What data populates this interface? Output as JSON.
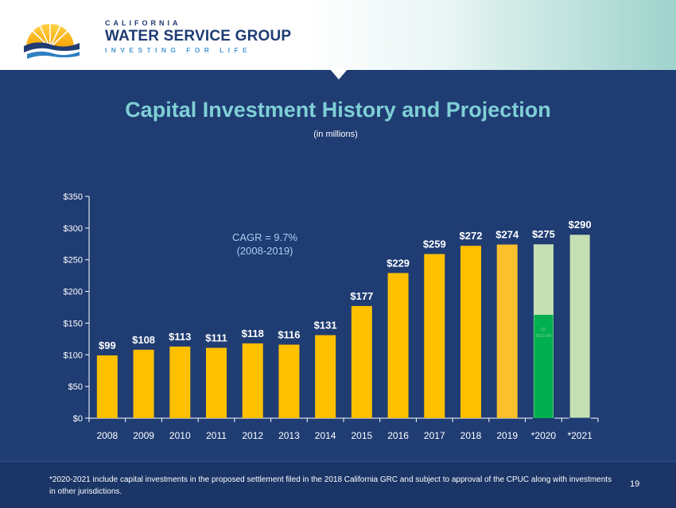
{
  "logo": {
    "top": "CALIFORNIA",
    "main": "WATER SERVICE GROUP",
    "sub": "INVESTING FOR LIFE"
  },
  "slide": {
    "title": "Capital Investment History and Projection",
    "subtitle": "(in millions)",
    "footnote": "*2020-2021 include capital investments in the proposed settlement filed in the 2018 California GRC and subject to approval of the CPUC along with investments in other jurisdictions.",
    "page_number": "19"
  },
  "chart_data": {
    "type": "bar",
    "categories": [
      "2008",
      "2009",
      "2010",
      "2011",
      "2012",
      "2013",
      "2014",
      "2015",
      "2016",
      "2017",
      "2018",
      "2019",
      "*2020",
      "*2021"
    ],
    "values": [
      99,
      108,
      113,
      111,
      118,
      116,
      131,
      177,
      229,
      259,
      272,
      274,
      275,
      290
    ],
    "value_labels": [
      "$99",
      "$108",
      "$113",
      "$111",
      "$118",
      "$116",
      "$131",
      "$177",
      "$229",
      "$259",
      "$272",
      "$274",
      "$275",
      "$290"
    ],
    "ylim": [
      0,
      350
    ],
    "yticks": [
      0,
      50,
      100,
      150,
      200,
      250,
      300,
      350
    ],
    "ytick_labels": [
      "$0",
      "$50",
      "$100",
      "$150",
      "$200",
      "$250",
      "$300",
      "$350"
    ],
    "bar_colors": [
      "#ffc000",
      "#ffc000",
      "#ffc000",
      "#ffc000",
      "#ffc000",
      "#ffc000",
      "#ffc000",
      "#ffc000",
      "#ffc000",
      "#ffc000",
      "#ffc000",
      "#fbc02d",
      "#c5e0b4",
      "#c5e0b4"
    ],
    "segment_2020": {
      "value": 163,
      "color": "#00b050",
      "label_line1": "Q2",
      "label_line2": "$163.0M"
    },
    "annotation": {
      "line1": "CAGR = 9.7%",
      "line2": "(2008-2019)",
      "color": "#a6d1ef"
    }
  }
}
